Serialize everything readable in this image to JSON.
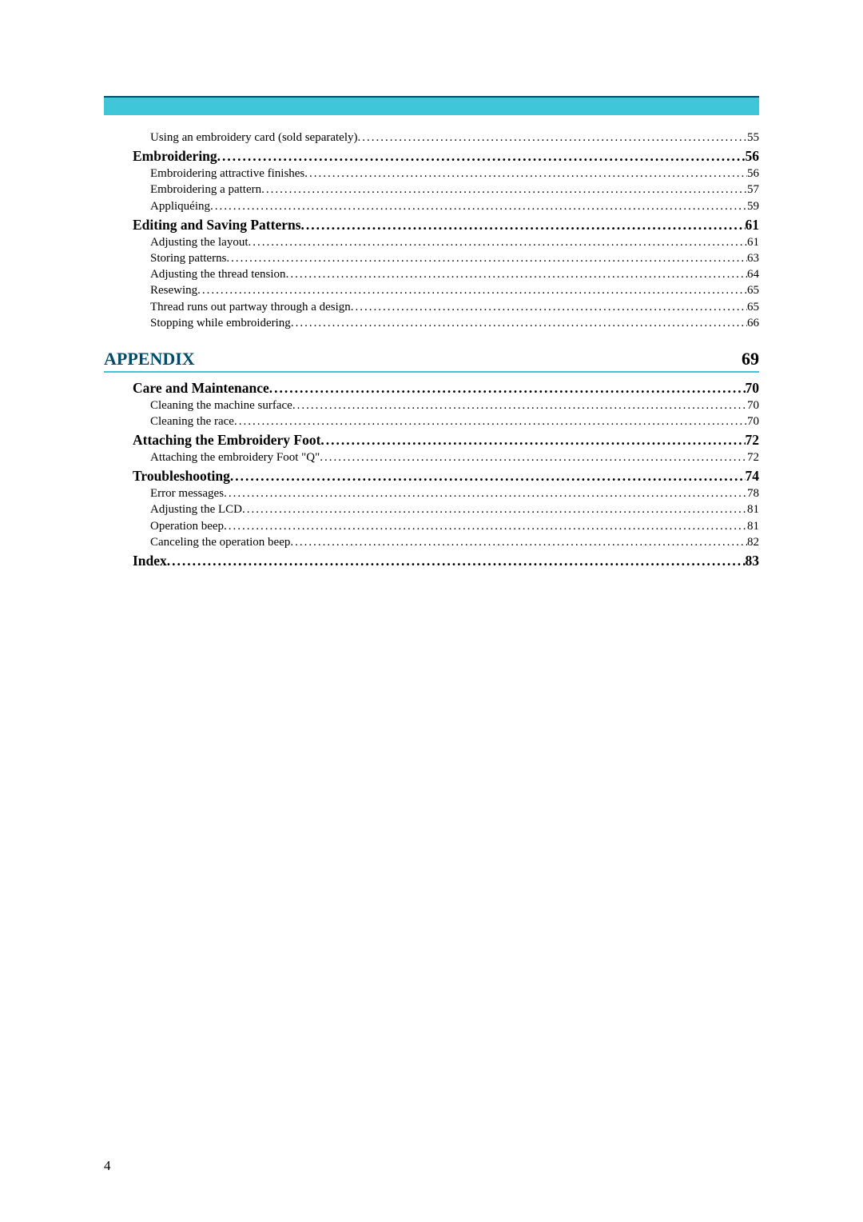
{
  "colors": {
    "bar_fill": "#3fc7d9",
    "bar_border": "#004a6b",
    "heading_text": "#004a6b",
    "body_text": "#000000",
    "background": "#ffffff"
  },
  "typography": {
    "body_font": "Times New Roman, serif",
    "chapter_fontsize_pt": 16,
    "level1_fontsize_pt": 13,
    "level2_fontsize_pt": 11
  },
  "page_number": "4",
  "leader_char": ".",
  "pre_entries": [
    {
      "level": 2,
      "label": "Using an embroidery card (sold separately) ",
      "page": "55"
    },
    {
      "level": 1,
      "label": "Embroidering",
      "page": "56"
    },
    {
      "level": 2,
      "label": "Embroidering attractive finishes",
      "page": "56"
    },
    {
      "level": 2,
      "label": "Embroidering a pattern",
      "page": "57"
    },
    {
      "level": 2,
      "label": "Appliquéing ",
      "page": "59"
    },
    {
      "level": 1,
      "label": "Editing and Saving Patterns ",
      "page": "61"
    },
    {
      "level": 2,
      "label": "Adjusting the layout ",
      "page": "61"
    },
    {
      "level": 2,
      "label": "Storing patterns ",
      "page": "63"
    },
    {
      "level": 2,
      "label": "Adjusting the thread tension",
      "page": "64"
    },
    {
      "level": 2,
      "label": "Resewing ",
      "page": "65"
    },
    {
      "level": 2,
      "label": "Thread runs out partway through a design",
      "page": "65"
    },
    {
      "level": 2,
      "label": "Stopping while embroidering ",
      "page": "66"
    }
  ],
  "chapters": [
    {
      "title": "APPENDIX",
      "page": "69",
      "entries": [
        {
          "level": 1,
          "label": "Care and Maintenance ",
          "page": "70"
        },
        {
          "level": 2,
          "label": "Cleaning the machine surface ",
          "page": "70"
        },
        {
          "level": 2,
          "label": "Cleaning the race ",
          "page": "70"
        },
        {
          "level": 1,
          "label": "Attaching the Embroidery Foot",
          "page": "72"
        },
        {
          "level": 2,
          "label": "Attaching the embroidery Foot \"Q\"",
          "page": "72"
        },
        {
          "level": 1,
          "label": "Troubleshooting ",
          "page": "74"
        },
        {
          "level": 2,
          "label": "Error messages ",
          "page": "78"
        },
        {
          "level": 2,
          "label": "Adjusting the LCD",
          "page": "81"
        },
        {
          "level": 2,
          "label": "Operation beep",
          "page": "81"
        },
        {
          "level": 2,
          "label": "Canceling the operation beep ",
          "page": "82"
        },
        {
          "level": 1,
          "label": "Index ",
          "page": "83"
        }
      ]
    }
  ]
}
